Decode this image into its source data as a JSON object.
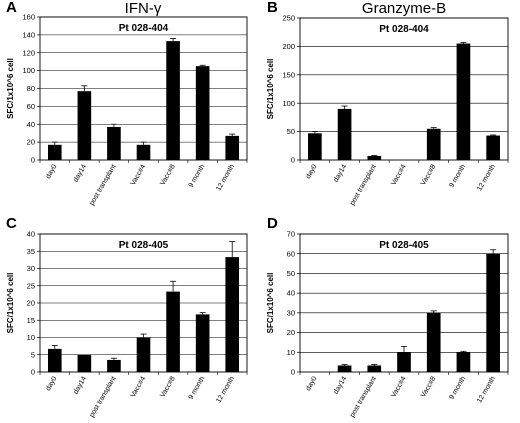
{
  "figure": {
    "panels": [
      {
        "letter": "A",
        "heading": "IFN-γ"
      },
      {
        "letter": "B",
        "heading": "Granzyme-B"
      },
      {
        "letter": "C",
        "heading": ""
      },
      {
        "letter": "D",
        "heading": ""
      }
    ]
  },
  "chart_data": [
    {
      "type": "bar",
      "title": "Pt 028-404",
      "ylabel": "SFC/1x10^6 cell",
      "xlabel": "",
      "categories": [
        "day0",
        "day14",
        "post transplant",
        "Vacc#4",
        "Vacc#8",
        "9 month",
        "12 month"
      ],
      "values": [
        17,
        77,
        37,
        17,
        133,
        105,
        27
      ],
      "errors": [
        3,
        6,
        3,
        3,
        3,
        1,
        2
      ],
      "ylim": [
        0,
        160
      ],
      "yticks": [
        0,
        20,
        40,
        60,
        80,
        100,
        120,
        140,
        160
      ],
      "grid": true,
      "bar_color": "#000000"
    },
    {
      "type": "bar",
      "title": "Pt 028-404",
      "ylabel": "SFC/1x10^6 cell",
      "xlabel": "",
      "categories": [
        "day0",
        "day14",
        "post transplant",
        "Vacc#4",
        "Vacc#8",
        "9 month",
        "12 month"
      ],
      "values": [
        47,
        90,
        7,
        0,
        55,
        205,
        43
      ],
      "errors": [
        3,
        5,
        1,
        0,
        2,
        2,
        1
      ],
      "ylim": [
        0,
        250
      ],
      "yticks": [
        0,
        50,
        100,
        150,
        200,
        250
      ],
      "grid": true,
      "bar_color": "#000000"
    },
    {
      "type": "bar",
      "title": "Pt 028-405",
      "ylabel": "SFC/1x10^6 cell",
      "xlabel": "",
      "categories": [
        "day0",
        "day14",
        "post transplant",
        "Vacc#4",
        "Vacc#8",
        "9 month",
        "12 month"
      ],
      "values": [
        6.7,
        5,
        3.5,
        10,
        23.3,
        16.7,
        33.3
      ],
      "errors": [
        1,
        0,
        0.5,
        1,
        3,
        0.5,
        4.5
      ],
      "ylim": [
        0,
        40
      ],
      "yticks": [
        0,
        5,
        10,
        15,
        20,
        25,
        30,
        35,
        40
      ],
      "grid": true,
      "bar_color": "#000000"
    },
    {
      "type": "bar",
      "title": "Pt 028-405",
      "ylabel": "SFC/1x10^6 cell",
      "xlabel": "",
      "categories": [
        "day0",
        "day14",
        "post transplant",
        "Vacc#4",
        "Vacc#8",
        "9 month",
        "12 month"
      ],
      "values": [
        0,
        3.3,
        3.3,
        10,
        30,
        10,
        60
      ],
      "errors": [
        0,
        0.5,
        0.5,
        3,
        1,
        0.5,
        2
      ],
      "ylim": [
        0,
        70
      ],
      "yticks": [
        0,
        10,
        20,
        30,
        40,
        50,
        60,
        70
      ],
      "grid": true,
      "bar_color": "#000000"
    }
  ]
}
